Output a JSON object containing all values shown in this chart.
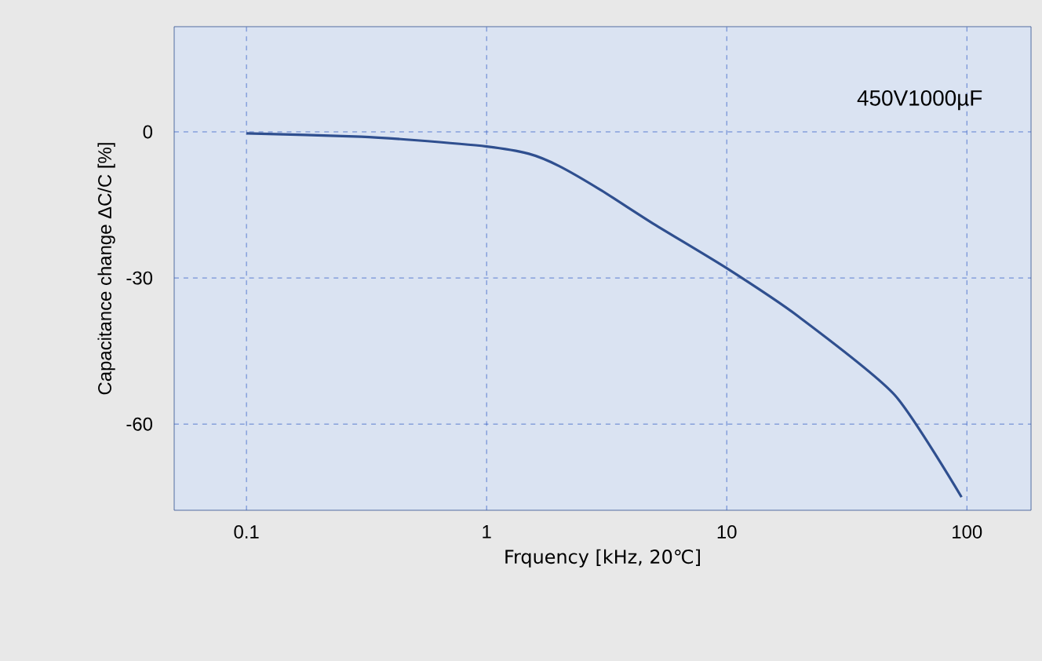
{
  "chart_data": {
    "type": "line",
    "xlabel": "Frquency [kHz, 20℃]",
    "ylabel": "Capacitance change ΔC/C [%]",
    "annotations": [
      "450V1000µF"
    ],
    "log": "x",
    "grid": true,
    "marker": "none",
    "line_style": "solid",
    "xlim": [
      0.05,
      185
    ],
    "ylim": [
      -77.7,
      21.6
    ],
    "xticks": [
      0.1,
      1,
      10,
      100
    ],
    "yticks": [
      0,
      -30,
      -60
    ],
    "x": [
      0.1,
      0.3,
      0.5,
      1,
      1.5,
      2,
      3,
      5,
      10,
      20,
      50,
      95
    ],
    "series": [
      {
        "color": "#2f4f8f",
        "values": [
          -0.3,
          -1,
          -1.7,
          -3,
          -4.5,
          -7,
          -12,
          -19,
          -28,
          -38,
          -54,
          -75
        ]
      }
    ]
  }
}
